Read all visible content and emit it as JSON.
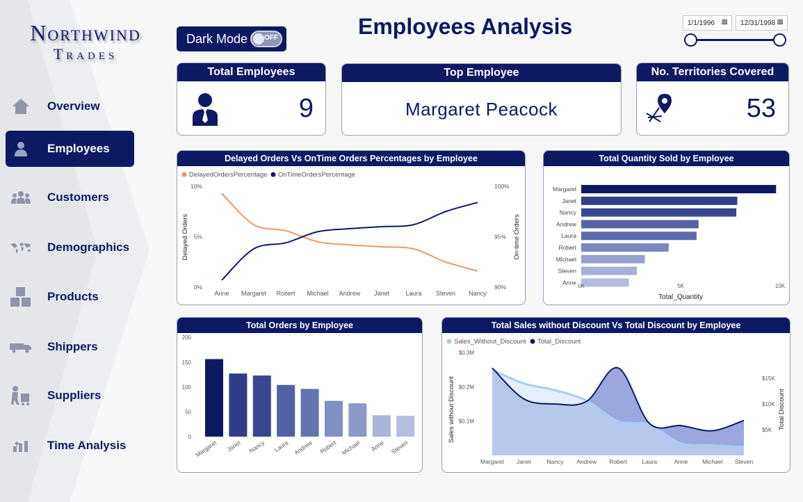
{
  "brand": {
    "line1": "Northwind",
    "line2": "Trades"
  },
  "nav": [
    {
      "label": "Overview",
      "icon": "home-icon",
      "active": false
    },
    {
      "label": "Employees",
      "icon": "person-icon",
      "active": true
    },
    {
      "label": "Customers",
      "icon": "group-icon",
      "active": false
    },
    {
      "label": "Demographics",
      "icon": "world-map-icon",
      "active": false
    },
    {
      "label": "Products",
      "icon": "boxes-icon",
      "active": false
    },
    {
      "label": "Shippers",
      "icon": "truck-icon",
      "active": false
    },
    {
      "label": "Suppliers",
      "icon": "supplier-icon",
      "active": false
    },
    {
      "label": "Time Analysis",
      "icon": "time-chart-icon",
      "active": false
    }
  ],
  "header": {
    "title": "Employees Analysis",
    "dark_mode_label": "Dark Mode",
    "toggle_state": "OFF",
    "date_start": "1/1/1996",
    "date_end": "12/31/1998"
  },
  "kpis": {
    "total_employees": {
      "title": "Total Employees",
      "value": "9"
    },
    "top_employee": {
      "title": "Top Employee",
      "value": "Margaret Peacock"
    },
    "territories": {
      "title": "No. Territories Covered",
      "value": "53"
    }
  },
  "colors": {
    "navy": "#0d1a63",
    "orange": "#f0956a",
    "light_blue": "#a8cdf5",
    "mid_blue": "#8a98d8"
  },
  "chart_data": [
    {
      "type": "line",
      "title": "Delayed Orders Vs OnTime Orders Percentages by Employee",
      "categories": [
        "Anne",
        "Margaret",
        "Robert",
        "Michael",
        "Andrew",
        "Janet",
        "Laura",
        "Steven",
        "Nancy"
      ],
      "series": [
        {
          "name": "DelayedOrdersPercentage",
          "axis": "left",
          "values": [
            9.3,
            6.2,
            5.6,
            4.5,
            4.2,
            4.0,
            3.8,
            2.5,
            1.6
          ]
        },
        {
          "name": "OnTimeOrdersPercentage",
          "axis": "right",
          "values": [
            90.7,
            93.8,
            94.4,
            95.5,
            95.8,
            96.0,
            96.2,
            97.5,
            98.4
          ]
        }
      ],
      "ylabel": "Delayed Orders",
      "y2label": "On-time Orders",
      "yticks": [
        "0%",
        "5%",
        "10%"
      ],
      "y2ticks": [
        "90%",
        "95%",
        "100%"
      ],
      "ylim": [
        0,
        10
      ],
      "y2lim": [
        90,
        100
      ],
      "legend": "top-left"
    },
    {
      "type": "bar",
      "orientation": "horizontal",
      "title": "Total Quantity Sold by Employee",
      "categories": [
        "Margaret",
        "Janet",
        "Nancy",
        "Andrew",
        "Laura",
        "Robert",
        "Michael",
        "Steven",
        "Anne"
      ],
      "values": [
        9800,
        7850,
        7800,
        5900,
        5800,
        4400,
        3200,
        2800,
        2400
      ],
      "xlabel": "Total_Quantity",
      "xticks": [
        "0K",
        "5K",
        "10K"
      ],
      "xlim": [
        0,
        10000
      ]
    },
    {
      "type": "bar",
      "title": "Total Orders by Employee",
      "categories": [
        "Margaret",
        "Janet",
        "Nancy",
        "Laura",
        "Andrew",
        "Robert",
        "Michael",
        "Anne",
        "Steven"
      ],
      "values": [
        156,
        127,
        123,
        104,
        96,
        72,
        67,
        43,
        42
      ],
      "yticks": [
        "0",
        "50",
        "100",
        "150",
        "200"
      ],
      "ylim": [
        0,
        200
      ]
    },
    {
      "type": "area",
      "title": "Total Sales without Discount Vs Total Discount by Employee",
      "categories": [
        "Margaret",
        "Janet",
        "Nancy",
        "Andrew",
        "Robert",
        "Laura",
        "Anne",
        "Michael",
        "Steven"
      ],
      "series": [
        {
          "name": "Sales_Without_Discount",
          "axis": "left",
          "values": [
            0.25,
            0.21,
            0.19,
            0.16,
            0.1,
            0.09,
            0.035,
            0.03,
            0.025
          ]
        },
        {
          "name": "Total_Discount",
          "axis": "right",
          "values": [
            17000,
            11000,
            10000,
            10500,
            17000,
            6200,
            5800,
            4800,
            6800
          ]
        }
      ],
      "ylabel": "Sales without Discount",
      "y2label": "Total Discount",
      "yticks": [
        "$0.1M",
        "$0.2M",
        "$0.3M"
      ],
      "y2ticks": [
        "$5K",
        "$10K",
        "$15K"
      ],
      "ylim": [
        0,
        0.3
      ],
      "y2lim": [
        0,
        20000
      ],
      "legend": "top-left"
    }
  ]
}
